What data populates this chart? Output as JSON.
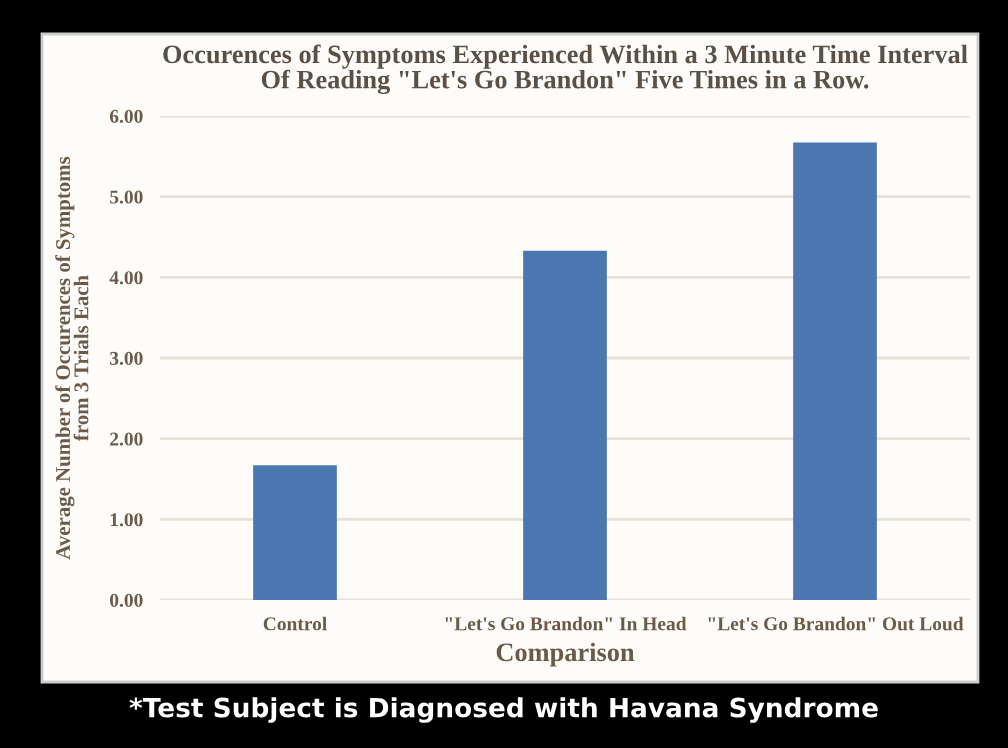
{
  "chart_data": {
    "type": "bar",
    "title": "Occurences of Symptoms Experienced Within a 3 Minute Time Interval\nOf Reading \"Let's Go Brandon\" Five Times in a Row.",
    "xlabel": "Comparison",
    "ylabel": "Average Number of Occurences of Symptoms\nfrom 3 Trials Each",
    "categories": [
      "Control",
      "\"Let's Go Brandon\" In Head",
      "\"Let's Go Brandon\" Out Loud"
    ],
    "values": [
      1.67,
      4.33,
      5.67
    ],
    "color": "#4a77b0",
    "ylim": [
      0,
      6
    ],
    "yticks": [
      {
        "value": 0,
        "label": "0.00"
      },
      {
        "value": 1,
        "label": "1.00"
      },
      {
        "value": 2,
        "label": "2.00"
      },
      {
        "value": 3,
        "label": "3.00"
      },
      {
        "value": 4,
        "label": "4.00"
      },
      {
        "value": 5,
        "label": "5.00"
      },
      {
        "value": 6,
        "label": "6.00"
      }
    ],
    "grid": "y",
    "annotations": [
      "*Test Subject is Diagnosed with Havana Syndrome"
    ]
  }
}
